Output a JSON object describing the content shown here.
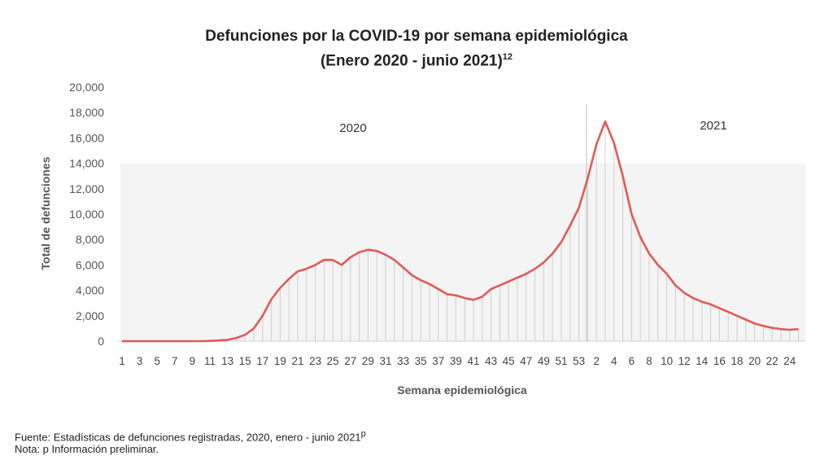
{
  "title": "Defunciones por la COVID-19 por semana epidemiológica",
  "subtitle": "(Enero 2020 - junio 2021)",
  "subtitle_sup": "12",
  "source": "Fuente: Estadísticas de defunciones registradas, 2020, enero - junio 2021",
  "source_sup": "p",
  "note": "Nota: p Información preliminar.",
  "chart_data": {
    "type": "area",
    "xlabel": "Semana epidemiológica",
    "ylabel": "Total de defunciones",
    "ylim": [
      0,
      20000
    ],
    "yticks": [
      0,
      2000,
      4000,
      6000,
      8000,
      10000,
      12000,
      14000,
      16000,
      18000,
      20000
    ],
    "ytick_labels": [
      "0",
      "2,000",
      "4,000",
      "6,000",
      "8,000",
      "10,000",
      "12,000",
      "14,000",
      "16,000",
      "18,000",
      "20,000"
    ],
    "xtick_labels": [
      "1",
      "3",
      "5",
      "7",
      "9",
      "11",
      "13",
      "15",
      "17",
      "19",
      "21",
      "23",
      "25",
      "27",
      "29",
      "31",
      "33",
      "35",
      "37",
      "39",
      "41",
      "43",
      "45",
      "47",
      "49",
      "51",
      "53",
      "2",
      "4",
      "6",
      "8",
      "10",
      "12",
      "14",
      "16",
      "18",
      "20",
      "22",
      "24"
    ],
    "year_labels": [
      "2020",
      "2021"
    ],
    "grid": false,
    "line_color": "#e05a5a",
    "bar_color": "#cfcfcf",
    "series": [
      {
        "year": "2020",
        "weeks": [
          1,
          2,
          3,
          4,
          5,
          6,
          7,
          8,
          9,
          10,
          11,
          12,
          13,
          14,
          15,
          16,
          17,
          18,
          19,
          20,
          21,
          22,
          23,
          24,
          25,
          26,
          27,
          28,
          29,
          30,
          31,
          32,
          33,
          34,
          35,
          36,
          37,
          38,
          39,
          40,
          41,
          42,
          43,
          44,
          45,
          46,
          47,
          48,
          49,
          50,
          51,
          52,
          53
        ],
        "values": [
          0,
          0,
          0,
          0,
          0,
          0,
          0,
          0,
          0,
          0,
          20,
          50,
          100,
          250,
          500,
          1000,
          2000,
          3300,
          4200,
          4900,
          5500,
          5700,
          6000,
          6400,
          6400,
          6000,
          6600,
          7000,
          7200,
          7100,
          6800,
          6400,
          5800,
          5200,
          4800,
          4500,
          4100,
          3700,
          3600,
          3400,
          3250,
          3500,
          4100,
          4400,
          4700,
          5000,
          5300,
          5700,
          6200,
          6900,
          7800,
          9100,
          10500
        ]
      },
      {
        "year": "2021",
        "weeks": [
          1,
          2,
          3,
          4,
          5,
          6,
          7,
          8,
          9,
          10,
          11,
          12,
          13,
          14,
          15,
          16,
          17,
          18,
          19,
          20,
          21,
          22,
          23,
          24,
          25
        ],
        "values": [
          12800,
          15500,
          17300,
          15600,
          13000,
          10000,
          8200,
          6900,
          6000,
          5300,
          4400,
          3800,
          3400,
          3100,
          2900,
          2600,
          2300,
          2000,
          1700,
          1400,
          1200,
          1050,
          950,
          900,
          950
        ]
      }
    ]
  }
}
